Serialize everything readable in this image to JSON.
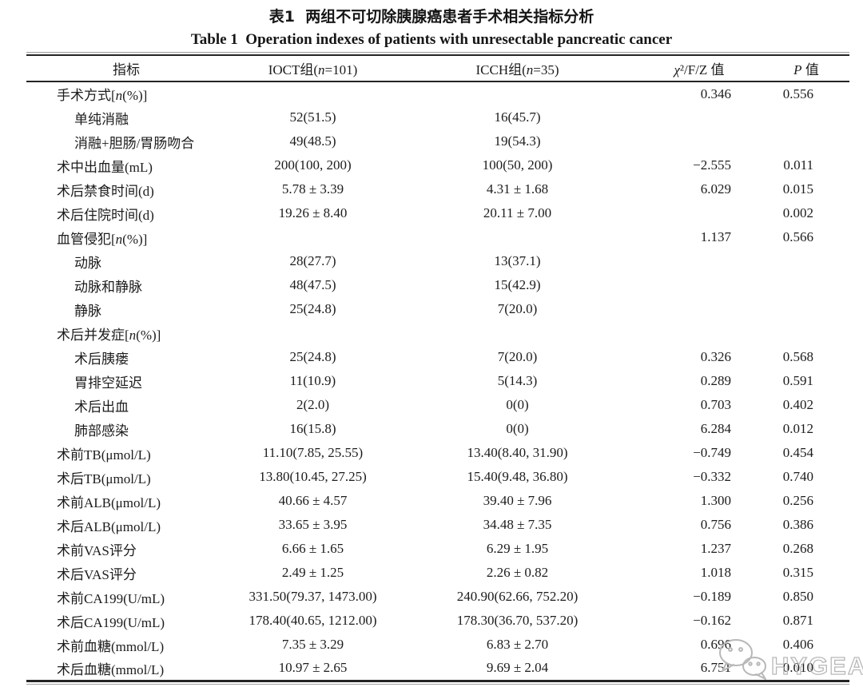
{
  "page": {
    "title_zh": "表1  两组不可切除胰腺癌患者手术相关指标分析",
    "title_en": "Table 1  Operation indexes of patients with unresectable pancreatic cancer"
  },
  "table": {
    "headers": [
      "指标",
      "IOCT组(n=101)",
      "ICCH组(n=35)",
      "χ²/F/Z 值",
      "P 值"
    ],
    "rows": [
      {
        "label": "手术方式[n(%)]",
        "indent": false,
        "ioct": "",
        "icch": "",
        "chi": "0.346",
        "p": "0.556"
      },
      {
        "label": "单纯消融",
        "indent": true,
        "ioct": "52(51.5)",
        "icch": "16(45.7)",
        "chi": "",
        "p": ""
      },
      {
        "label": "消融+胆肠/胃肠吻合",
        "indent": true,
        "ioct": "49(48.5)",
        "icch": "19(54.3)",
        "chi": "",
        "p": ""
      },
      {
        "label": "术中出血量(mL)",
        "indent": false,
        "ioct": "200(100, 200)",
        "icch": "100(50, 200)",
        "chi": "−2.555",
        "p": "0.011"
      },
      {
        "label": "术后禁食时间(d)",
        "indent": false,
        "ioct": "5.78 ± 3.39",
        "icch": "4.31 ± 1.68",
        "chi": "6.029",
        "p": "0.015"
      },
      {
        "label": "术后住院时间(d)",
        "indent": false,
        "ioct": "19.26 ± 8.40",
        "icch": "20.11 ± 7.00",
        "chi": "",
        "p": "0.002"
      },
      {
        "label": "血管侵犯[n(%)]",
        "indent": false,
        "ioct": "",
        "icch": "",
        "chi": "1.137",
        "p": "0.566"
      },
      {
        "label": "动脉",
        "indent": true,
        "ioct": "28(27.7)",
        "icch": "13(37.1)",
        "chi": "",
        "p": ""
      },
      {
        "label": "动脉和静脉",
        "indent": true,
        "ioct": "48(47.5)",
        "icch": "15(42.9)",
        "chi": "",
        "p": ""
      },
      {
        "label": "静脉",
        "indent": true,
        "ioct": "25(24.8)",
        "icch": "7(20.0)",
        "chi": "",
        "p": ""
      },
      {
        "label": "术后并发症[n(%)]",
        "indent": false,
        "ioct": "",
        "icch": "",
        "chi": "",
        "p": ""
      },
      {
        "label": "术后胰瘘",
        "indent": true,
        "ioct": "25(24.8)",
        "icch": "7(20.0)",
        "chi": "0.326",
        "p": "0.568"
      },
      {
        "label": "胃排空延迟",
        "indent": true,
        "ioct": "11(10.9)",
        "icch": "5(14.3)",
        "chi": "0.289",
        "p": "0.591"
      },
      {
        "label": "术后出血",
        "indent": true,
        "ioct": "2(2.0)",
        "icch": "0(0)",
        "chi": "0.703",
        "p": "0.402"
      },
      {
        "label": "肺部感染",
        "indent": true,
        "ioct": "16(15.8)",
        "icch": "0(0)",
        "chi": "6.284",
        "p": "0.012"
      },
      {
        "label": "术前TB(μmol/L)",
        "indent": false,
        "ioct": "11.10(7.85, 25.55)",
        "icch": "13.40(8.40, 31.90)",
        "chi": "−0.749",
        "p": "0.454"
      },
      {
        "label": "术后TB(μmol/L)",
        "indent": false,
        "ioct": "13.80(10.45, 27.25)",
        "icch": "15.40(9.48, 36.80)",
        "chi": "−0.332",
        "p": "0.740"
      },
      {
        "label": "术前ALB(μmol/L)",
        "indent": false,
        "ioct": "40.66 ± 4.57",
        "icch": "39.40 ± 7.96",
        "chi": "1.300",
        "p": "0.256"
      },
      {
        "label": "术后ALB(μmol/L)",
        "indent": false,
        "ioct": "33.65 ± 3.95",
        "icch": "34.48 ± 7.35",
        "chi": "0.756",
        "p": "0.386"
      },
      {
        "label": "术前VAS评分",
        "indent": false,
        "ioct": "6.66 ± 1.65",
        "icch": "6.29 ± 1.95",
        "chi": "1.237",
        "p": "0.268"
      },
      {
        "label": "术后VAS评分",
        "indent": false,
        "ioct": "2.49 ± 1.25",
        "icch": "2.26 ± 0.82",
        "chi": "1.018",
        "p": "0.315"
      },
      {
        "label": "术前CA199(U/mL)",
        "indent": false,
        "ioct": "331.50(79.37, 1473.00)",
        "icch": "240.90(62.66, 752.20)",
        "chi": "−0.189",
        "p": "0.850"
      },
      {
        "label": "术后CA199(U/mL)",
        "indent": false,
        "ioct": "178.40(40.65, 1212.00)",
        "icch": "178.30(36.70, 537.20)",
        "chi": "−0.162",
        "p": "0.871"
      },
      {
        "label": "术前血糖(mmol/L)",
        "indent": false,
        "ioct": "7.35 ± 3.29",
        "icch": "6.83 ± 2.70",
        "chi": "0.696",
        "p": "0.406"
      },
      {
        "label": "术后血糖(mmol/L)",
        "indent": false,
        "ioct": "10.97 ± 2.65",
        "icch": "9.69 ± 2.04",
        "chi": "6.751",
        "p": "0.010"
      }
    ]
  },
  "watermark": {
    "text": "HYGEA",
    "color": "#b8b8b8"
  }
}
